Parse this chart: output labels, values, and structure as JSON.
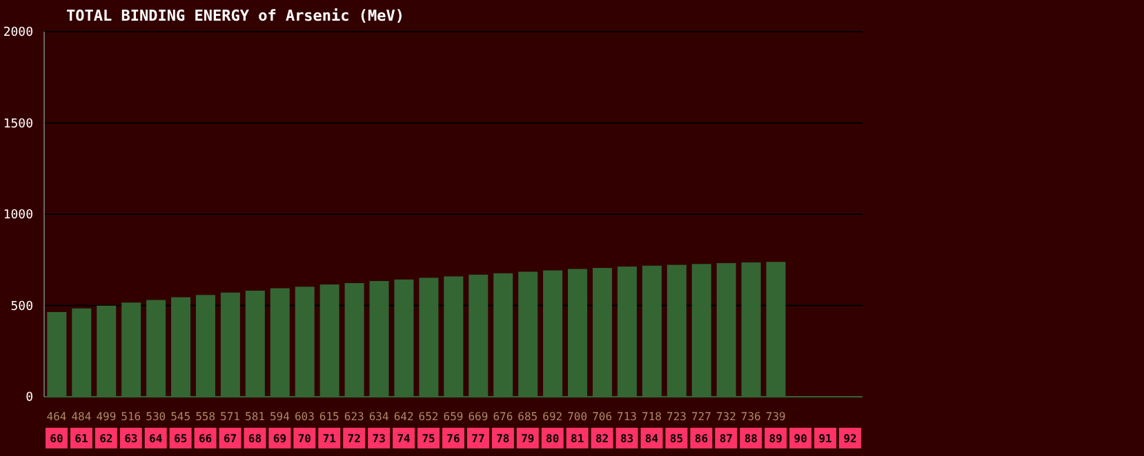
{
  "chart_data": {
    "type": "bar",
    "title": "TOTAL BINDING ENERGY of Arsenic (MeV)",
    "categories": [
      "60",
      "61",
      "62",
      "63",
      "64",
      "65",
      "66",
      "67",
      "68",
      "69",
      "70",
      "71",
      "72",
      "73",
      "74",
      "75",
      "76",
      "77",
      "78",
      "79",
      "80",
      "81",
      "82",
      "83",
      "84",
      "85",
      "86",
      "87",
      "88",
      "89",
      "90",
      "91",
      "92"
    ],
    "values": [
      464,
      484,
      499,
      516,
      530,
      545,
      558,
      571,
      581,
      594,
      603,
      615,
      623,
      634,
      642,
      652,
      659,
      669,
      676,
      685,
      692,
      700,
      706,
      713,
      718,
      723,
      727,
      732,
      736,
      739,
      null,
      null,
      null
    ],
    "color": "#336633",
    "ylim": [
      0,
      2000
    ],
    "yticks": [
      0,
      500,
      1000,
      1500,
      2000
    ],
    "grid": "y",
    "data_labels": true,
    "legend": false
  }
}
